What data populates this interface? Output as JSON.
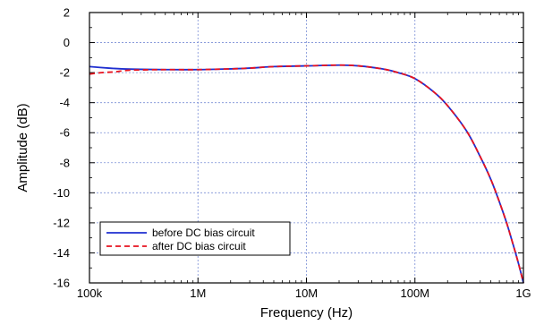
{
  "chart_data": {
    "type": "line",
    "xlabel": "Frequency (Hz)",
    "ylabel": "Amplitude (dB)",
    "x_scale": "log",
    "xlim": [
      100000,
      1000000000
    ],
    "ylim": [
      -16,
      2
    ],
    "x_ticks": [
      {
        "value": 100000,
        "label": "100k"
      },
      {
        "value": 1000000,
        "label": "1M"
      },
      {
        "value": 10000000,
        "label": "10M"
      },
      {
        "value": 100000000,
        "label": "100M"
      },
      {
        "value": 1000000000,
        "label": "1G"
      }
    ],
    "y_ticks": [
      {
        "value": 2,
        "label": "2"
      },
      {
        "value": 0,
        "label": "0"
      },
      {
        "value": -2,
        "label": "-2"
      },
      {
        "value": -4,
        "label": "-4"
      },
      {
        "value": -6,
        "label": "-6"
      },
      {
        "value": -8,
        "label": "-8"
      },
      {
        "value": -10,
        "label": "-10"
      },
      {
        "value": -12,
        "label": "-12"
      },
      {
        "value": -14,
        "label": "-14"
      },
      {
        "value": -16,
        "label": "-16"
      }
    ],
    "grid": true,
    "legend_position": "bottom-left",
    "series": [
      {
        "name": "before DC bias circuit",
        "color": "#1f2fd0",
        "dash": "solid",
        "x": [
          100000,
          150000,
          200000,
          300000,
          500000,
          1000000,
          2000000,
          3000000,
          5000000,
          10000000,
          20000000,
          30000000,
          50000000,
          70000000,
          100000000,
          150000000,
          200000000,
          300000000,
          400000000,
          500000000,
          600000000,
          700000000,
          800000000,
          900000000,
          1000000000
        ],
        "y": [
          -1.6,
          -1.7,
          -1.75,
          -1.78,
          -1.8,
          -1.8,
          -1.75,
          -1.7,
          -1.6,
          -1.55,
          -1.5,
          -1.55,
          -1.75,
          -2.0,
          -2.4,
          -3.3,
          -4.2,
          -5.9,
          -7.6,
          -9.1,
          -10.6,
          -12.0,
          -13.4,
          -14.7,
          -16.0
        ]
      },
      {
        "name": "after DC bias circuit",
        "color": "#e8121e",
        "dash": "dashed",
        "x": [
          100000,
          130000,
          170000,
          220000,
          300000,
          500000,
          1000000,
          2000000,
          3000000,
          5000000,
          10000000,
          20000000,
          30000000,
          50000000,
          70000000,
          100000000,
          150000000,
          200000000,
          300000000,
          400000000,
          500000000,
          600000000,
          700000000,
          800000000,
          900000000,
          1000000000
        ],
        "y": [
          -2.1,
          -2.0,
          -1.95,
          -1.85,
          -1.82,
          -1.8,
          -1.8,
          -1.75,
          -1.7,
          -1.6,
          -1.55,
          -1.5,
          -1.55,
          -1.75,
          -2.0,
          -2.4,
          -3.3,
          -4.2,
          -5.9,
          -7.6,
          -9.1,
          -10.6,
          -12.0,
          -13.4,
          -14.7,
          -16.0
        ]
      }
    ]
  }
}
